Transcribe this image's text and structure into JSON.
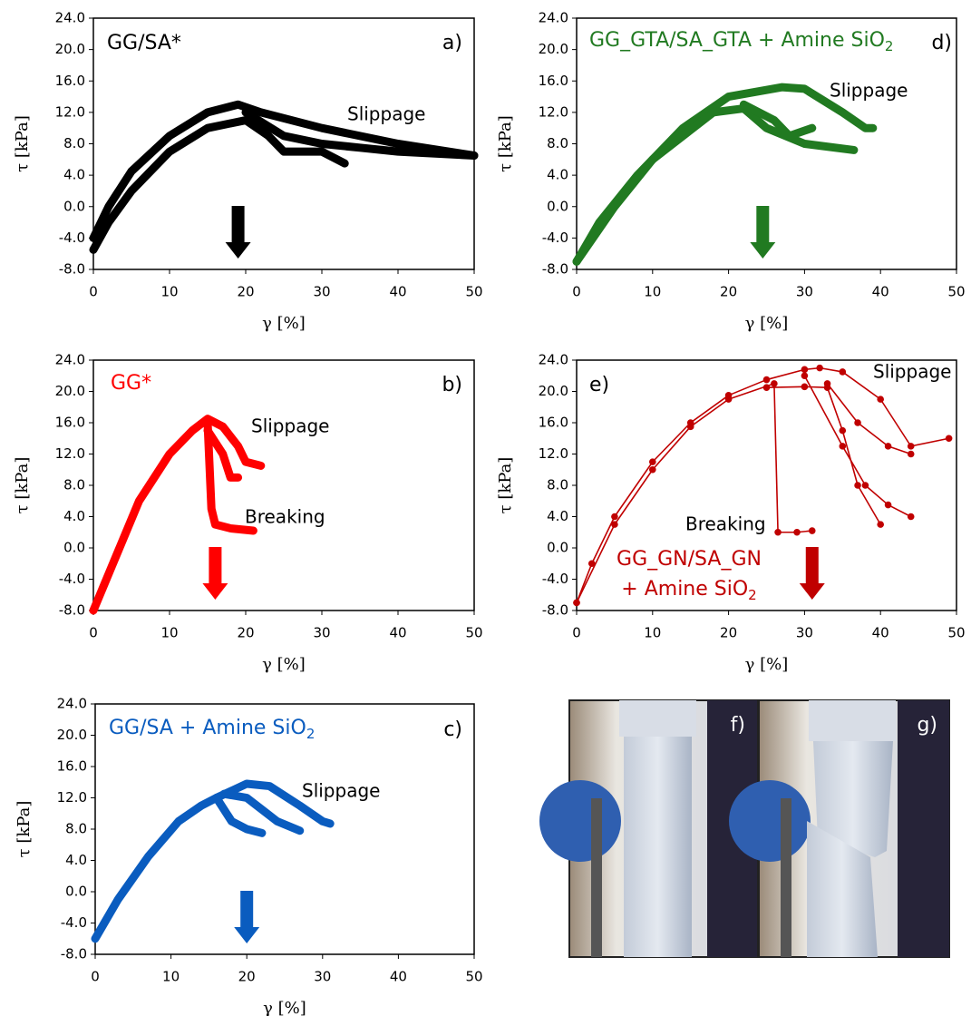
{
  "chart_data": [
    {
      "type": "line",
      "panel": "a)",
      "title": "GG/SA*",
      "title_color": "#000000",
      "xlabel": "γ [%]",
      "ylabel": "τ [kPa]",
      "xlim": [
        0,
        50
      ],
      "ylim": [
        -8,
        24
      ],
      "xticks": [
        0,
        10,
        20,
        30,
        40,
        50
      ],
      "yticks": [
        {
          "value": -8,
          "label": "-8.0"
        },
        {
          "value": -4,
          "label": "-4.0"
        },
        {
          "value": 0,
          "label": "0.0"
        },
        {
          "value": 4,
          "label": "4.0"
        },
        {
          "value": 8,
          "label": "8.0"
        },
        {
          "value": 12,
          "label": "12.0"
        },
        {
          "value": 16,
          "label": "16.0"
        },
        {
          "value": 20,
          "label": "20.0"
        },
        {
          "value": 24,
          "label": "24.0"
        }
      ],
      "annotations": [
        "Slippage"
      ],
      "arrow_x": 19,
      "color": "#000000",
      "markers": false,
      "series": [
        {
          "color": "#000000",
          "x": [
            0,
            2,
            5,
            10,
            15,
            19,
            22,
            30,
            40,
            50
          ],
          "values": [
            -4,
            0,
            4.5,
            9,
            12,
            13,
            12,
            10,
            8,
            6.5
          ]
        },
        {
          "color": "#000000",
          "x": [
            0,
            2,
            5,
            10,
            15,
            20,
            23,
            25,
            30,
            33
          ],
          "values": [
            -5.5,
            -2,
            2,
            7,
            10,
            11,
            9,
            7,
            7,
            5.5
          ]
        },
        {
          "color": "#000000",
          "x": [
            20,
            25,
            30,
            35,
            40,
            50
          ],
          "values": [
            12,
            9,
            8,
            7.5,
            7,
            6.5
          ]
        }
      ]
    },
    {
      "type": "line",
      "panel": "d)",
      "title": "GG_GTA/SA_GTA + Amine SiO",
      "title_sub": "2",
      "title_color": "#217a21",
      "xlabel": "γ [%]",
      "ylabel": "τ [kPa]",
      "xlim": [
        0,
        50
      ],
      "ylim": [
        -8,
        24
      ],
      "xticks": [
        0,
        10,
        20,
        30,
        40,
        50
      ],
      "yticks": [
        {
          "value": -8,
          "label": "-8.0"
        },
        {
          "value": -4,
          "label": "-4.0"
        },
        {
          "value": 0,
          "label": "0.0"
        },
        {
          "value": 4,
          "label": "4.0"
        },
        {
          "value": 8,
          "label": "8.0"
        },
        {
          "value": 12,
          "label": "12.0"
        },
        {
          "value": 16,
          "label": "16.0"
        },
        {
          "value": 20,
          "label": "20.0"
        },
        {
          "value": 24,
          "label": "24.0"
        }
      ],
      "annotations": [
        "Slippage"
      ],
      "arrow_x": 24.5,
      "color": "#217a21",
      "markers": false,
      "series": [
        {
          "color": "#217a21",
          "x": [
            0,
            3,
            8,
            14,
            20,
            27,
            30,
            35,
            38,
            39
          ],
          "values": [
            -7,
            -2,
            4,
            10,
            14,
            15.2,
            15,
            12,
            10,
            10
          ]
        },
        {
          "color": "#217a21",
          "x": [
            0,
            5,
            10,
            18,
            22,
            25,
            30,
            36.5
          ],
          "values": [
            -7,
            0,
            6,
            12,
            12.5,
            10,
            8,
            7.2
          ]
        },
        {
          "color": "#217a21",
          "x": [
            22,
            26,
            28,
            31
          ],
          "values": [
            13,
            11,
            9,
            10
          ]
        }
      ]
    },
    {
      "type": "line",
      "panel": "b)",
      "title": "GG*",
      "title_color": "#ff0000",
      "xlabel": "γ [%]",
      "ylabel": "τ [kPa]",
      "xlim": [
        0,
        50
      ],
      "ylim": [
        -8,
        24
      ],
      "xticks": [
        0,
        10,
        20,
        30,
        40,
        50
      ],
      "yticks": [
        {
          "value": -8,
          "label": "-8.0"
        },
        {
          "value": -4,
          "label": "-4.0"
        },
        {
          "value": 0,
          "label": "0.0"
        },
        {
          "value": 4,
          "label": "4.0"
        },
        {
          "value": 8,
          "label": "8.0"
        },
        {
          "value": 12,
          "label": "12.0"
        },
        {
          "value": 16,
          "label": "16.0"
        },
        {
          "value": 20,
          "label": "20.0"
        },
        {
          "value": 24,
          "label": "24.0"
        }
      ],
      "annotations": [
        "Slippage",
        "Breaking"
      ],
      "arrow_x": 16,
      "color": "#ff0000",
      "markers": false,
      "series": [
        {
          "color": "#ff0000",
          "x": [
            0,
            3,
            6,
            10,
            13,
            15,
            17,
            19,
            20,
            22
          ],
          "values": [
            -8,
            -1,
            6,
            12,
            15,
            16.5,
            15.5,
            13,
            11,
            10.5
          ]
        },
        {
          "color": "#ff0000",
          "x": [
            15,
            15.5,
            16,
            18,
            21
          ],
          "values": [
            16,
            5,
            3,
            2.5,
            2.2
          ]
        },
        {
          "color": "#ff0000",
          "x": [
            15,
            17,
            18,
            19
          ],
          "values": [
            15,
            12,
            9,
            9
          ]
        }
      ]
    },
    {
      "type": "line",
      "panel": "e)",
      "title": "GG_GN/SA_GN",
      "subtitle": "+ Amine SiO",
      "subtitle_sub": "2",
      "title_color": "#c00000",
      "xlabel": "γ [%]",
      "ylabel": "τ [kPa]",
      "xlim": [
        0,
        50
      ],
      "ylim": [
        -8,
        24
      ],
      "xticks": [
        0,
        10,
        20,
        30,
        40,
        50
      ],
      "yticks": [
        {
          "value": -8,
          "label": "-8.0"
        },
        {
          "value": -4,
          "label": "-4.0"
        },
        {
          "value": 0,
          "label": "0.0"
        },
        {
          "value": 4,
          "label": "4.0"
        },
        {
          "value": 8,
          "label": "8.0"
        },
        {
          "value": 12,
          "label": "12.0"
        },
        {
          "value": 16,
          "label": "16.0"
        },
        {
          "value": 20,
          "label": "20.0"
        },
        {
          "value": 24,
          "label": "24.0"
        }
      ],
      "annotations": [
        "Slippage",
        "Breaking"
      ],
      "arrow_x": 31,
      "color": "#c00000",
      "markers": true,
      "series": [
        {
          "color": "#c00000",
          "x": [
            0,
            2,
            5,
            10,
            15,
            20,
            25,
            30,
            32,
            35,
            40,
            44,
            49
          ],
          "values": [
            -7,
            -2,
            4,
            11,
            16,
            19.5,
            21.5,
            22.8,
            23,
            22.5,
            19,
            13,
            14
          ]
        },
        {
          "color": "#c00000",
          "x": [
            0,
            5,
            10,
            15,
            20,
            26,
            26.5,
            29,
            31
          ],
          "values": [
            -7,
            3,
            10,
            15.5,
            19,
            21,
            2,
            2,
            2.2
          ]
        },
        {
          "color": "#c00000",
          "x": [
            25,
            30,
            33,
            35,
            37,
            40
          ],
          "values": [
            20.5,
            20.6,
            20.5,
            15,
            8,
            3
          ]
        },
        {
          "color": "#c00000",
          "x": [
            30,
            35,
            38,
            41,
            44
          ],
          "values": [
            22,
            13,
            8,
            5.5,
            4
          ]
        },
        {
          "color": "#c00000",
          "x": [
            33,
            37,
            41,
            44
          ],
          "values": [
            21,
            16,
            13,
            12
          ]
        }
      ]
    },
    {
      "type": "line",
      "panel": "c)",
      "title": "GG/SA + Amine SiO",
      "title_sub": "2",
      "title_color": "#0a5cbf",
      "xlabel": "γ [%]",
      "ylabel": "τ [kPa]",
      "xlim": [
        0,
        50
      ],
      "ylim": [
        -8,
        24
      ],
      "xticks": [
        0,
        10,
        20,
        30,
        40,
        50
      ],
      "yticks": [
        {
          "value": -8,
          "label": "-8.0"
        },
        {
          "value": -4,
          "label": "-4.0"
        },
        {
          "value": 0,
          "label": "0.0"
        },
        {
          "value": 4,
          "label": "4.0"
        },
        {
          "value": 8,
          "label": "8.0"
        },
        {
          "value": 12,
          "label": "12.0"
        },
        {
          "value": 16,
          "label": "16.0"
        },
        {
          "value": 20,
          "label": "20.0"
        },
        {
          "value": 24,
          "label": "24.0"
        }
      ],
      "annotations": [
        "Slippage"
      ],
      "arrow_x": 20,
      "color": "#0a5cbf",
      "markers": false,
      "series": [
        {
          "color": "#0a5cbf",
          "x": [
            0,
            3,
            7,
            11,
            14,
            16,
            20,
            23,
            27,
            30,
            31
          ],
          "values": [
            -6,
            -1,
            4.5,
            9,
            11,
            12,
            13.8,
            13.5,
            11,
            9,
            8.7
          ]
        },
        {
          "color": "#0a5cbf",
          "x": [
            16,
            18,
            20,
            22
          ],
          "values": [
            12,
            9,
            8,
            7.5
          ]
        },
        {
          "color": "#0a5cbf",
          "x": [
            17,
            20,
            24,
            27
          ],
          "values": [
            12.5,
            12,
            9,
            7.8
          ]
        }
      ]
    }
  ],
  "photos": [
    {
      "label": "f)"
    },
    {
      "label": "g)"
    }
  ]
}
